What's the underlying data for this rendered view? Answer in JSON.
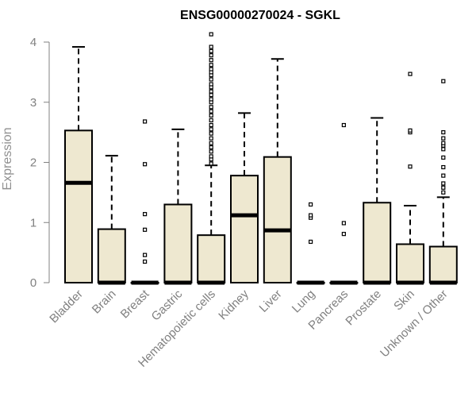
{
  "chart_data": {
    "type": "boxplot",
    "title": "ENSG00000270024 - SGKL",
    "ylabel": "Expression",
    "xlabel": "",
    "ylim": [
      0,
      4
    ],
    "yticks": [
      0,
      1,
      2,
      3,
      4
    ],
    "box_color": "#EEE8D0",
    "grid": false,
    "categories": [
      "Bladder",
      "Brain",
      "Breast",
      "Gastric",
      "Hematopoietic cells",
      "Kidney",
      "Liver",
      "Lung",
      "Pancreas",
      "Prostate",
      "Skin",
      "Unknown / Other"
    ],
    "boxes": [
      {
        "whisker_low": 0,
        "q1": 0,
        "median": 1.66,
        "q3": 2.53,
        "whisker_high": 3.92,
        "outliers": []
      },
      {
        "whisker_low": 0,
        "q1": 0,
        "median": 0,
        "q3": 0.89,
        "whisker_high": 2.11,
        "outliers": []
      },
      {
        "whisker_low": 0,
        "q1": 0,
        "median": 0,
        "q3": 0,
        "whisker_high": 0,
        "outliers": [
          0.35,
          0.46,
          0.88,
          1.14,
          1.97,
          2.68
        ]
      },
      {
        "whisker_low": 0,
        "q1": 0,
        "median": 0,
        "q3": 1.3,
        "whisker_high": 2.55,
        "outliers": []
      },
      {
        "whisker_low": 0,
        "q1": 0,
        "median": 0,
        "q3": 0.79,
        "whisker_high": 1.95,
        "outliers": [
          1.98,
          2.05,
          2.1,
          2.18,
          2.25,
          2.32,
          2.4,
          2.48,
          2.55,
          2.62,
          2.7,
          2.78,
          2.85,
          2.92,
          3.0,
          3.05,
          3.12,
          3.18,
          3.25,
          3.3,
          3.38,
          3.45,
          3.5,
          3.55,
          3.62,
          3.7,
          3.78,
          3.85,
          3.92,
          4.13
        ]
      },
      {
        "whisker_low": 0,
        "q1": 0,
        "median": 1.12,
        "q3": 1.78,
        "whisker_high": 2.82,
        "outliers": []
      },
      {
        "whisker_low": 0,
        "q1": 0,
        "median": 0.87,
        "q3": 2.09,
        "whisker_high": 3.72,
        "outliers": []
      },
      {
        "whisker_low": 0,
        "q1": 0,
        "median": 0,
        "q3": 0,
        "whisker_high": 0,
        "outliers": [
          0.68,
          1.08,
          1.12,
          1.3
        ]
      },
      {
        "whisker_low": 0,
        "q1": 0,
        "median": 0,
        "q3": 0,
        "whisker_high": 0,
        "outliers": [
          0.81,
          0.99,
          2.62
        ]
      },
      {
        "whisker_low": 0,
        "q1": 0,
        "median": 0,
        "q3": 1.33,
        "whisker_high": 2.74,
        "outliers": []
      },
      {
        "whisker_low": 0,
        "q1": 0,
        "median": 0,
        "q3": 0.64,
        "whisker_high": 1.28,
        "outliers": [
          1.93,
          2.5,
          2.53,
          3.47
        ]
      },
      {
        "whisker_low": 0,
        "q1": 0,
        "median": 0,
        "q3": 0.6,
        "whisker_high": 1.42,
        "outliers": [
          1.5,
          1.58,
          1.65,
          1.78,
          1.92,
          2.08,
          2.22,
          2.28,
          2.32,
          2.4,
          2.5,
          3.35
        ]
      }
    ]
  }
}
